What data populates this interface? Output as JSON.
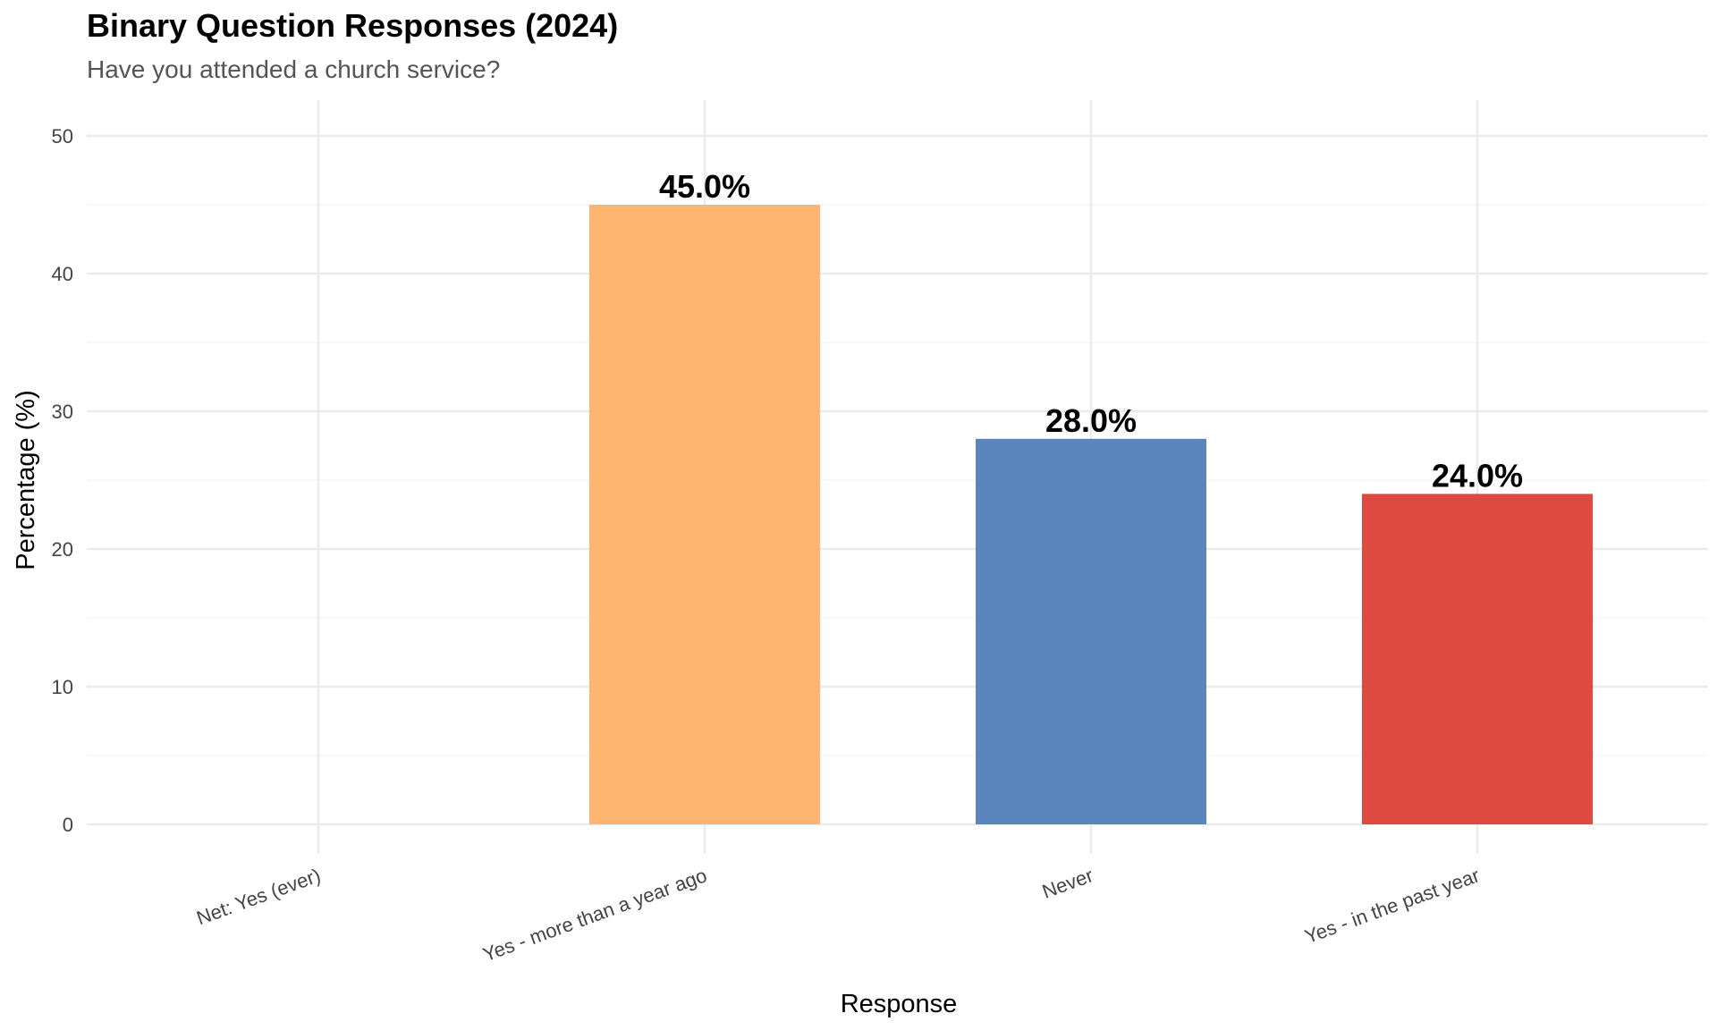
{
  "chart_data": {
    "type": "bar",
    "title": "Binary Question Responses (2024)",
    "subtitle": "Have you attended a church service?",
    "xlabel": "Response",
    "ylabel": "Percentage (%)",
    "categories": [
      "Net: Yes (ever)",
      "Yes - more than a year ago",
      "Never",
      "Yes - in the past year"
    ],
    "values": [
      null,
      45.0,
      28.0,
      24.0
    ],
    "value_labels": [
      "",
      "45.0%",
      "28.0%",
      "24.0%"
    ],
    "colors": [
      "#fdb56f",
      "#fdb56f",
      "#5b86bd",
      "#de4a42"
    ],
    "ylim": [
      0,
      52
    ],
    "yticks": [
      0,
      10,
      20,
      30,
      40,
      50
    ],
    "ytick_labels": [
      "0",
      "10",
      "20",
      "30",
      "40",
      "50"
    ],
    "grid": true,
    "legend": "none"
  }
}
